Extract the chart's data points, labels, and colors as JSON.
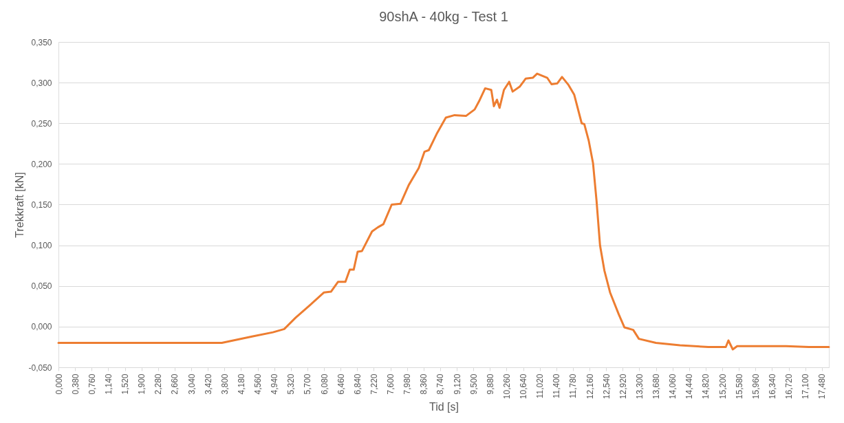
{
  "chart_data": {
    "type": "line",
    "title": "90shA - 40kg - Test 1",
    "xlabel": "Tid [s]",
    "ylabel": "Trekkraft [kN]",
    "x": [
      0,
      3.74,
      4.45,
      4.91,
      5.17,
      5.43,
      5.75,
      6.08,
      6.24,
      6.4,
      6.57,
      6.67,
      6.76,
      6.85,
      6.95,
      7.18,
      7.31,
      7.44,
      7.63,
      7.83,
      8.02,
      8.25,
      8.38,
      8.48,
      8.67,
      8.87,
      9.07,
      9.33,
      9.53,
      9.63,
      9.77,
      9.91,
      9.97,
      10.04,
      10.1,
      10.2,
      10.32,
      10.4,
      10.56,
      10.7,
      10.86,
      10.96,
      11.19,
      11.29,
      11.42,
      11.53,
      11.68,
      11.81,
      11.98,
      12.04,
      12.14,
      12.24,
      12.32,
      12.4,
      12.5,
      12.63,
      12.83,
      12.96,
      13.16,
      13.29,
      13.68,
      14.23,
      14.88,
      15.28,
      15.34,
      15.44,
      15.54,
      16.66,
      17.18,
      17.64
    ],
    "series": [
      {
        "color": "#ed7d31",
        "values": [
          -0.02,
          -0.02,
          -0.012,
          -0.007,
          -0.003,
          0.011,
          0.026,
          0.042,
          0.043,
          0.055,
          0.055,
          0.07,
          0.07,
          0.092,
          0.093,
          0.117,
          0.122,
          0.126,
          0.15,
          0.151,
          0.174,
          0.195,
          0.215,
          0.217,
          0.238,
          0.257,
          0.26,
          0.259,
          0.267,
          0.277,
          0.293,
          0.291,
          0.271,
          0.279,
          0.269,
          0.291,
          0.301,
          0.289,
          0.295,
          0.305,
          0.306,
          0.311,
          0.306,
          0.298,
          0.299,
          0.307,
          0.297,
          0.285,
          0.25,
          0.249,
          0.229,
          0.201,
          0.155,
          0.1,
          0.069,
          0.042,
          0.015,
          -0.001,
          -0.004,
          -0.015,
          -0.02,
          -0.023,
          -0.025,
          -0.025,
          -0.017,
          -0.028,
          -0.024,
          -0.024,
          -0.025,
          -0.025
        ]
      }
    ],
    "xlim": [
      0,
      17.64
    ],
    "xticks": [
      {
        "value": 0,
        "label": "0,000"
      },
      {
        "value": 0.38,
        "label": "0,380"
      },
      {
        "value": 0.76,
        "label": "0,760"
      },
      {
        "value": 1.14,
        "label": "1,140"
      },
      {
        "value": 1.52,
        "label": "1,520"
      },
      {
        "value": 1.9,
        "label": "1,900"
      },
      {
        "value": 2.28,
        "label": "2,280"
      },
      {
        "value": 2.66,
        "label": "2,660"
      },
      {
        "value": 3.04,
        "label": "3,040"
      },
      {
        "value": 3.42,
        "label": "3,420"
      },
      {
        "value": 3.8,
        "label": "3,800"
      },
      {
        "value": 4.18,
        "label": "4,180"
      },
      {
        "value": 4.56,
        "label": "4,560"
      },
      {
        "value": 4.94,
        "label": "4,940"
      },
      {
        "value": 5.32,
        "label": "5,320"
      },
      {
        "value": 5.7,
        "label": "5,700"
      },
      {
        "value": 6.08,
        "label": "6,080"
      },
      {
        "value": 6.46,
        "label": "6,460"
      },
      {
        "value": 6.84,
        "label": "6,840"
      },
      {
        "value": 7.22,
        "label": "7,220"
      },
      {
        "value": 7.6,
        "label": "7,600"
      },
      {
        "value": 7.98,
        "label": "7,980"
      },
      {
        "value": 8.36,
        "label": "8,360"
      },
      {
        "value": 8.74,
        "label": "8,740"
      },
      {
        "value": 9.12,
        "label": "9,120"
      },
      {
        "value": 9.5,
        "label": "9,500"
      },
      {
        "value": 9.88,
        "label": "9,880"
      },
      {
        "value": 10.26,
        "label": "10,260"
      },
      {
        "value": 10.64,
        "label": "10,640"
      },
      {
        "value": 11.02,
        "label": "11,020"
      },
      {
        "value": 11.4,
        "label": "11,400"
      },
      {
        "value": 11.78,
        "label": "11,780"
      },
      {
        "value": 12.16,
        "label": "12,160"
      },
      {
        "value": 12.54,
        "label": "12,540"
      },
      {
        "value": 12.92,
        "label": "12,920"
      },
      {
        "value": 13.3,
        "label": "13,300"
      },
      {
        "value": 13.68,
        "label": "13,680"
      },
      {
        "value": 14.06,
        "label": "14,060"
      },
      {
        "value": 14.44,
        "label": "14,440"
      },
      {
        "value": 14.82,
        "label": "14,820"
      },
      {
        "value": 15.2,
        "label": "15,200"
      },
      {
        "value": 15.58,
        "label": "15,580"
      },
      {
        "value": 15.96,
        "label": "15,960"
      },
      {
        "value": 16.34,
        "label": "16,340"
      },
      {
        "value": 16.72,
        "label": "16,720"
      },
      {
        "value": 17.1,
        "label": "17,100"
      },
      {
        "value": 17.48,
        "label": "17,480"
      }
    ],
    "ylim": [
      -0.05,
      0.35
    ],
    "yticks": [
      {
        "value": -0.05,
        "label": "-0,050"
      },
      {
        "value": 0,
        "label": "0,000"
      },
      {
        "value": 0.05,
        "label": "0,050"
      },
      {
        "value": 0.1,
        "label": "0,100"
      },
      {
        "value": 0.15,
        "label": "0,150"
      },
      {
        "value": 0.2,
        "label": "0,200"
      },
      {
        "value": 0.25,
        "label": "0,250"
      },
      {
        "value": 0.3,
        "label": "0,300"
      },
      {
        "value": 0.35,
        "label": "0,350"
      }
    ],
    "grid": "y",
    "marker": "none",
    "line_style": "solid"
  }
}
